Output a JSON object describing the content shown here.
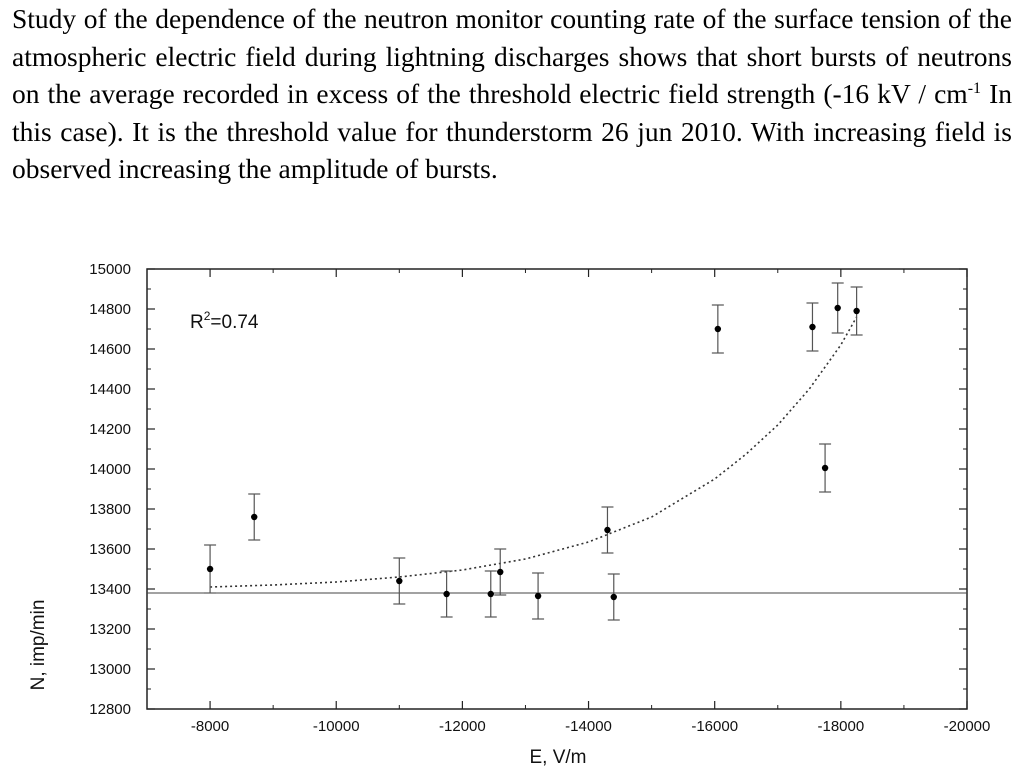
{
  "paragraph": {
    "part1": "Study of the dependence of the neutron monitor counting rate of the surface tension of the atmospheric electric field during lightning discharges shows that short bursts of neutrons on the average recorded in excess of the threshold electric field strength (-16 kV / cm",
    "sup": "-1",
    "part2": " In this case). It is the threshold value for thunderstorm 26 jun 2010. With increasing field is observed increasing the amplitude of bursts."
  },
  "chart_data": {
    "type": "scatter",
    "xlabel": "E, V/m",
    "ylabel": "N, imp/min",
    "xlim": [
      -7000,
      -20000
    ],
    "ylim": [
      12800,
      15000
    ],
    "x_ticks": [
      -8000,
      -10000,
      -12000,
      -14000,
      -16000,
      -18000,
      -20000
    ],
    "y_ticks": [
      12800,
      13000,
      13200,
      13400,
      13600,
      13800,
      14000,
      14200,
      14400,
      14600,
      14800,
      15000
    ],
    "annotation": {
      "base": "R",
      "sup": "2",
      "rest": "=0.74"
    },
    "points": [
      {
        "x": -8000,
        "y": 13500,
        "err": 120
      },
      {
        "x": -8700,
        "y": 13760,
        "err": 115
      },
      {
        "x": -11000,
        "y": 13440,
        "err": 115
      },
      {
        "x": -11750,
        "y": 13375,
        "err": 115
      },
      {
        "x": -12450,
        "y": 13375,
        "err": 115
      },
      {
        "x": -12600,
        "y": 13485,
        "err": 115
      },
      {
        "x": -13200,
        "y": 13365,
        "err": 115
      },
      {
        "x": -14300,
        "y": 13695,
        "err": 115
      },
      {
        "x": -14400,
        "y": 13360,
        "err": 115
      },
      {
        "x": -16050,
        "y": 14700,
        "err": 120
      },
      {
        "x": -17550,
        "y": 14710,
        "err": 120
      },
      {
        "x": -17750,
        "y": 14005,
        "err": 120
      },
      {
        "x": -17950,
        "y": 14805,
        "err": 125
      },
      {
        "x": -18250,
        "y": 14790,
        "err": 120
      }
    ],
    "baseline_y": 13380,
    "fit_curve": [
      {
        "x": -8000,
        "y": 13410
      },
      {
        "x": -9000,
        "y": 13420
      },
      {
        "x": -10000,
        "y": 13435
      },
      {
        "x": -11000,
        "y": 13460
      },
      {
        "x": -12000,
        "y": 13495
      },
      {
        "x": -13000,
        "y": 13550
      },
      {
        "x": -14000,
        "y": 13635
      },
      {
        "x": -15000,
        "y": 13760
      },
      {
        "x": -16000,
        "y": 13950
      },
      {
        "x": -16500,
        "y": 14075
      },
      {
        "x": -17000,
        "y": 14220
      },
      {
        "x": -17500,
        "y": 14400
      },
      {
        "x": -18000,
        "y": 14620
      },
      {
        "x": -18250,
        "y": 14760
      }
    ],
    "grid": false,
    "marker_color": "#000000",
    "line_color": "#444444"
  }
}
